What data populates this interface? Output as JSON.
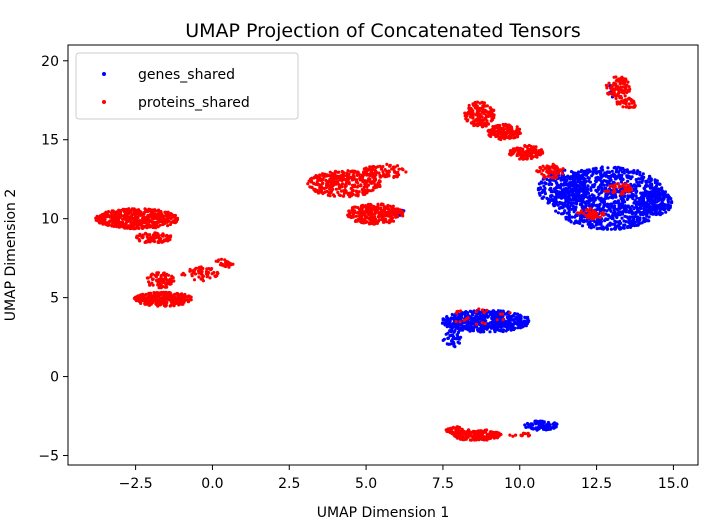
{
  "chart_data": {
    "type": "scatter",
    "title": "UMAP Projection of Concatenated Tensors",
    "xlabel": "UMAP Dimension 1",
    "ylabel": "UMAP Dimension 2",
    "xlim": [
      -4.7,
      15.8
    ],
    "ylim": [
      -5.6,
      21.0
    ],
    "xticks": [
      -2.5,
      0.0,
      2.5,
      5.0,
      7.5,
      10.0,
      12.5,
      15.0
    ],
    "xtick_labels": [
      "−2.5",
      "0.0",
      "2.5",
      "5.0",
      "7.5",
      "10.0",
      "12.5",
      "15.0"
    ],
    "yticks": [
      -5,
      0,
      5,
      10,
      15,
      20
    ],
    "ytick_labels": [
      "−5",
      "0",
      "5",
      "10",
      "15",
      "20"
    ],
    "grid": false,
    "legend_position": "upper-left",
    "series": [
      {
        "name": "genes_shared",
        "color": "#0000ff",
        "clusters": [
          {
            "cx": 12.9,
            "cy": 11.3,
            "rx": 1.9,
            "ry": 2.0,
            "n": 1100
          },
          {
            "cx": 11.4,
            "cy": 11.9,
            "rx": 0.8,
            "ry": 1.2,
            "n": 200
          },
          {
            "cx": 14.4,
            "cy": 11.0,
            "rx": 0.55,
            "ry": 0.8,
            "n": 120
          },
          {
            "cx": 8.9,
            "cy": 3.5,
            "rx": 1.45,
            "ry": 0.7,
            "n": 500
          },
          {
            "cx": 7.8,
            "cy": 2.4,
            "rx": 0.3,
            "ry": 0.55,
            "n": 40
          },
          {
            "cx": 10.7,
            "cy": -3.1,
            "rx": 0.55,
            "ry": 0.3,
            "n": 90
          },
          {
            "cx": 13.1,
            "cy": 18.1,
            "rx": 0.25,
            "ry": 0.45,
            "n": 12
          },
          {
            "cx": 6.15,
            "cy": 10.2,
            "rx": 0.1,
            "ry": 0.5,
            "n": 5
          }
        ]
      },
      {
        "name": "proteins_shared",
        "color": "#ff0000",
        "clusters": [
          {
            "cx": -2.45,
            "cy": 10.0,
            "rx": 1.35,
            "ry": 0.65,
            "n": 480
          },
          {
            "cx": -1.9,
            "cy": 8.8,
            "rx": 0.6,
            "ry": 0.35,
            "n": 90
          },
          {
            "cx": -1.6,
            "cy": 4.9,
            "rx": 0.95,
            "ry": 0.45,
            "n": 280
          },
          {
            "cx": -1.7,
            "cy": 6.1,
            "rx": 0.45,
            "ry": 0.5,
            "n": 70
          },
          {
            "cx": -0.4,
            "cy": 6.5,
            "rx": 0.6,
            "ry": 0.45,
            "n": 60
          },
          {
            "cx": 0.4,
            "cy": 7.2,
            "rx": 0.3,
            "ry": 0.35,
            "n": 25
          },
          {
            "cx": 5.3,
            "cy": 10.3,
            "rx": 0.95,
            "ry": 0.65,
            "n": 260
          },
          {
            "cx": 4.3,
            "cy": 12.2,
            "rx": 1.2,
            "ry": 0.85,
            "n": 330
          },
          {
            "cx": 5.6,
            "cy": 13.0,
            "rx": 0.7,
            "ry": 0.45,
            "n": 90
          },
          {
            "cx": 8.7,
            "cy": 16.6,
            "rx": 0.5,
            "ry": 0.8,
            "n": 160
          },
          {
            "cx": 9.5,
            "cy": 15.5,
            "rx": 0.55,
            "ry": 0.5,
            "n": 150
          },
          {
            "cx": 10.2,
            "cy": 14.2,
            "rx": 0.55,
            "ry": 0.45,
            "n": 120
          },
          {
            "cx": 11.0,
            "cy": 13.0,
            "rx": 0.45,
            "ry": 0.45,
            "n": 60
          },
          {
            "cx": 13.2,
            "cy": 18.3,
            "rx": 0.4,
            "ry": 0.7,
            "n": 90
          },
          {
            "cx": 13.5,
            "cy": 17.3,
            "rx": 0.35,
            "ry": 0.35,
            "n": 35
          },
          {
            "cx": 12.3,
            "cy": 10.3,
            "rx": 0.45,
            "ry": 0.35,
            "n": 45
          },
          {
            "cx": 13.2,
            "cy": 11.9,
            "rx": 0.5,
            "ry": 0.35,
            "n": 35
          },
          {
            "cx": 8.6,
            "cy": -3.7,
            "rx": 0.8,
            "ry": 0.35,
            "n": 170
          },
          {
            "cx": 7.9,
            "cy": -3.4,
            "rx": 0.3,
            "ry": 0.25,
            "n": 40
          },
          {
            "cx": 10.0,
            "cy": -3.7,
            "rx": 0.4,
            "ry": 0.15,
            "n": 12
          },
          {
            "cx": 8.8,
            "cy": 3.8,
            "rx": 1.1,
            "ry": 0.55,
            "n": 22
          }
        ]
      }
    ]
  }
}
